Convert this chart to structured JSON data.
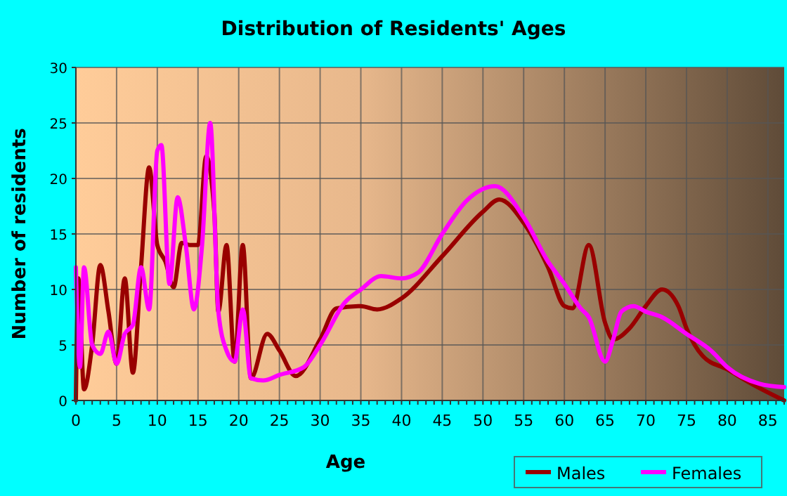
{
  "chart_data": {
    "type": "line",
    "title": "Distribution of Residents' Ages",
    "xlabel": "Age",
    "ylabel": "Number of residents",
    "xlim": [
      0,
      87
    ],
    "xticks": [
      0,
      5,
      10,
      15,
      20,
      25,
      30,
      35,
      40,
      45,
      50,
      55,
      60,
      65,
      70,
      75,
      80,
      85
    ],
    "ylim": [
      0,
      30
    ],
    "yticks": [
      0,
      5,
      10,
      15,
      20,
      25,
      30
    ],
    "grid": true,
    "legend": "bottom right",
    "line_style": "solid",
    "series": [
      {
        "name": "Males",
        "color": "#990000",
        "x": [
          0,
          0.3,
          1,
          2,
          3,
          4,
          5,
          6,
          7,
          8,
          9,
          10,
          11,
          12,
          13,
          14,
          15,
          16,
          17,
          17.5,
          18.5,
          19.5,
          20.5,
          21.5,
          23.5,
          25,
          27,
          30,
          32,
          35,
          37,
          40,
          45,
          50,
          52,
          55,
          58,
          60,
          61,
          63,
          65,
          66,
          68,
          70,
          72,
          74,
          75,
          77,
          80,
          83,
          87
        ],
        "values": [
          0,
          11,
          1,
          5,
          12.2,
          8,
          3.3,
          11,
          2.5,
          12,
          21,
          14,
          12.5,
          10.2,
          14.2,
          14,
          14,
          22,
          17,
          8,
          14,
          3.5,
          14,
          2,
          6,
          4.5,
          2.2,
          5.5,
          8.3,
          8.5,
          8.2,
          9.2,
          13,
          17,
          18.1,
          16,
          12,
          8.5,
          8.3,
          14,
          7,
          5.5,
          6.5,
          8.5,
          10,
          8.5,
          6.5,
          4,
          2.8,
          1.5,
          0
        ]
      },
      {
        "name": "Females",
        "color": "#ff00ff",
        "x": [
          0,
          0.5,
          1,
          2,
          3,
          4,
          5,
          6,
          7,
          8,
          9,
          10,
          10.5,
          11.5,
          12.5,
          13.5,
          14.5,
          15.5,
          16.5,
          17.5,
          18.5,
          19.5,
          20.5,
          21.5,
          23,
          25,
          28,
          30,
          33,
          35,
          37.5,
          40,
          42,
          45,
          48,
          51.5,
          55,
          58,
          60,
          62,
          63,
          65,
          66,
          67,
          68.5,
          70,
          72,
          75,
          78,
          80,
          84,
          87
        ],
        "values": [
          12,
          3,
          12,
          5,
          4.2,
          6.2,
          3.3,
          6,
          6.8,
          12,
          8.2,
          22.5,
          23,
          10.5,
          18.3,
          14,
          8.2,
          14,
          25,
          8,
          4.5,
          3.5,
          8.2,
          2,
          1.8,
          2.3,
          3,
          5,
          8.8,
          10,
          11.2,
          11,
          11.5,
          15,
          18,
          19.3,
          16.5,
          12.5,
          10.5,
          8.3,
          7.5,
          3.5,
          5.5,
          8,
          8.5,
          8,
          7.5,
          6,
          4.5,
          3,
          1.5,
          1.2
        ]
      }
    ]
  }
}
